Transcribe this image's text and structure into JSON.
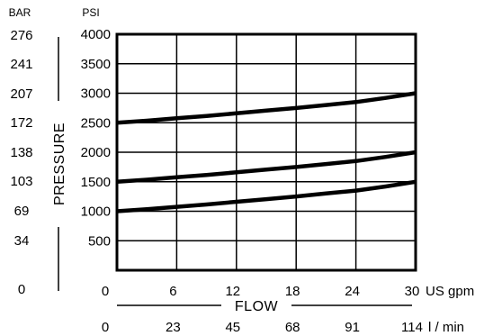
{
  "chart_data": {
    "type": "line",
    "x": [
      0,
      3,
      6,
      9,
      12,
      15,
      18,
      21,
      24,
      27,
      30
    ],
    "series": [
      {
        "values": [
          2500,
          2535,
          2575,
          2615,
          2660,
          2705,
          2750,
          2800,
          2850,
          2920,
          3000
        ]
      },
      {
        "values": [
          1500,
          1535,
          1575,
          1615,
          1660,
          1705,
          1750,
          1800,
          1850,
          1920,
          2000
        ]
      },
      {
        "values": [
          1000,
          1035,
          1075,
          1115,
          1160,
          1205,
          1250,
          1300,
          1350,
          1420,
          1500
        ]
      }
    ],
    "xlim": [
      0,
      30
    ],
    "ylim": [
      0,
      4000
    ],
    "grid": true,
    "y_left_header": "BAR",
    "y_right_header": "PSI",
    "bar_ticks": [
      "276",
      "241",
      "207",
      "172",
      "138",
      "103",
      "69",
      "34",
      "0"
    ],
    "psi_ticks": [
      "4000",
      "3500",
      "3000",
      "2500",
      "2000",
      "1500",
      "1000",
      "500"
    ],
    "y_label": "PRESSURE",
    "x_label": "FLOW",
    "gpm_ticks": [
      "0",
      "6",
      "12",
      "18",
      "24",
      "30"
    ],
    "gpm_unit": "US gpm",
    "lmin_ticks": [
      "0",
      "23",
      "45",
      "68",
      "91",
      "114"
    ],
    "lmin_unit": "l / min"
  }
}
